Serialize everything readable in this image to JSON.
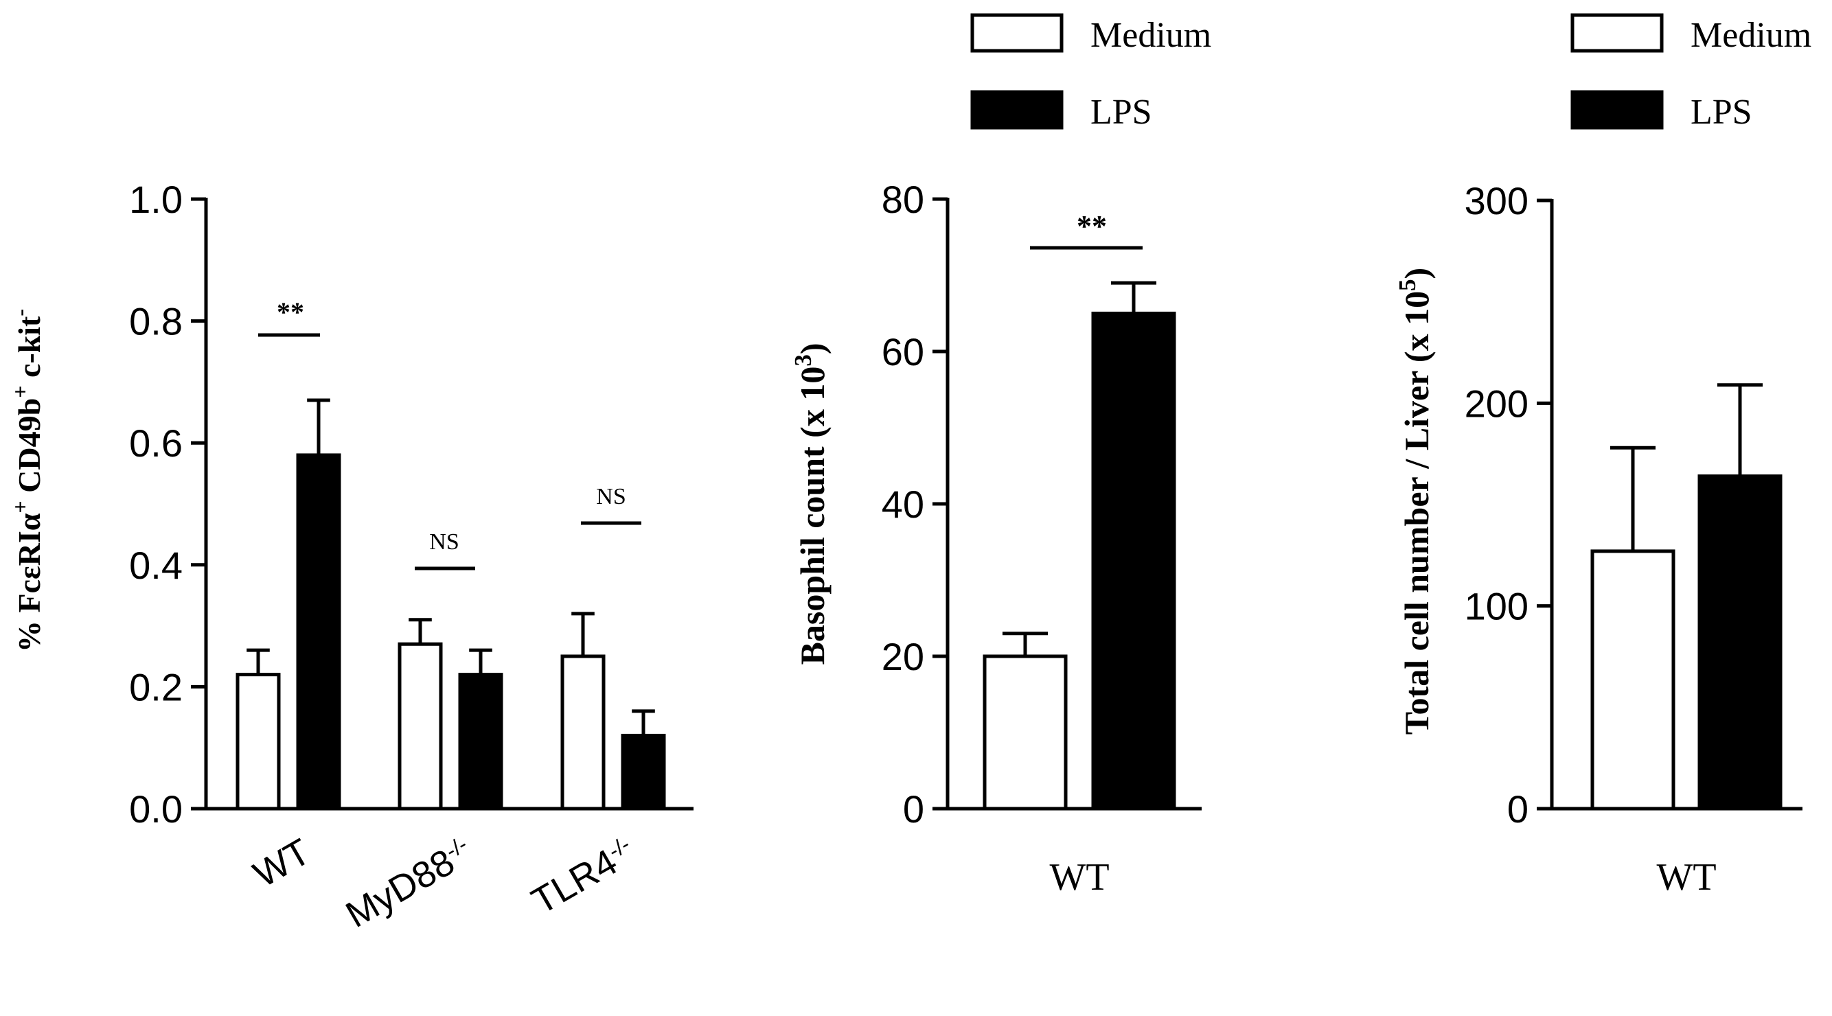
{
  "chart_data": [
    {
      "type": "bar",
      "ylabel_parts": [
        "% Fc",
        "ε",
        "RI",
        "α",
        "+",
        " CD49b",
        "+",
        " c-kit",
        "-"
      ],
      "ylim": [
        0,
        1.0
      ],
      "yticks": [
        "0.0",
        "0.2",
        "0.4",
        "0.6",
        "0.8",
        "1.0"
      ],
      "categories": [
        {
          "base": "WT",
          "sup": ""
        },
        {
          "base": "MyD88",
          "sup": "-/-"
        },
        {
          "base": "TLR4",
          "sup": "-/-"
        }
      ],
      "series": [
        {
          "name": "Medium",
          "values": [
            0.22,
            0.27,
            0.25
          ],
          "errors": [
            0.04,
            0.04,
            0.07
          ],
          "color": "#ffffff"
        },
        {
          "name": "LPS",
          "values": [
            0.58,
            0.22,
            0.12
          ],
          "errors": [
            0.09,
            0.04,
            0.04
          ],
          "color": "#000000"
        }
      ],
      "annotations": [
        "**",
        "NS",
        "NS"
      ],
      "legend": ""
    },
    {
      "type": "bar",
      "ylabel_parts": [
        "Basophil count (x 10",
        "3",
        ")"
      ],
      "ylim": [
        0,
        80
      ],
      "yticks": [
        "0",
        "20",
        "40",
        "60",
        "80"
      ],
      "categories": [
        {
          "base": "WT",
          "sup": ""
        }
      ],
      "series": [
        {
          "name": "Medium",
          "values": [
            20
          ],
          "errors": [
            3
          ],
          "color": "#ffffff"
        },
        {
          "name": "LPS",
          "values": [
            65
          ],
          "errors": [
            4
          ],
          "color": "#000000"
        }
      ],
      "annotations": [
        "**"
      ],
      "legend": "top"
    },
    {
      "type": "bar",
      "ylabel_parts": [
        "Total cell number / Liver (x 10",
        "5",
        ")"
      ],
      "ylim": [
        0,
        300
      ],
      "yticks": [
        "0",
        "100",
        "200",
        "300"
      ],
      "categories": [
        {
          "base": "WT",
          "sup": ""
        }
      ],
      "series": [
        {
          "name": "Medium",
          "values": [
            127
          ],
          "errors": [
            51
          ],
          "color": "#ffffff"
        },
        {
          "name": "LPS",
          "values": [
            164
          ],
          "errors": [
            45
          ],
          "color": "#000000"
        }
      ],
      "annotations": [],
      "legend": "top"
    }
  ],
  "legend_items": [
    "Medium",
    "LPS"
  ]
}
